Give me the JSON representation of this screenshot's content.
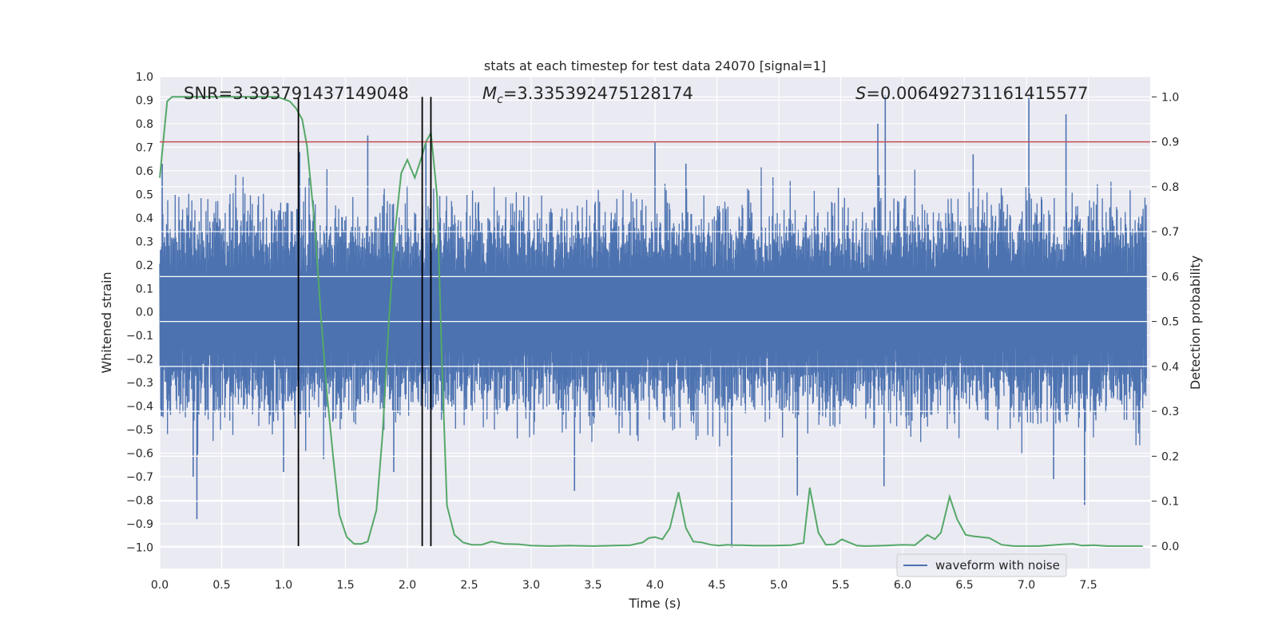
{
  "chart_data": {
    "type": "line",
    "title": "stats at each timestep for test data 24070 [signal=1]",
    "xlabel": "Time (s)",
    "ylabel": "Whitened strain",
    "y2label": "Detection probability",
    "xlim": [
      0.0,
      8.0
    ],
    "ylim": [
      -1.09,
      1.0
    ],
    "y2lim": [
      -0.05,
      1.045
    ],
    "x_ticks": [
      0.0,
      0.5,
      1.0,
      1.5,
      2.0,
      2.5,
      3.0,
      3.5,
      4.0,
      4.5,
      5.0,
      5.5,
      6.0,
      6.5,
      7.0,
      7.5
    ],
    "y_ticks": [
      1.0,
      0.9,
      0.8,
      0.7,
      0.6,
      0.5,
      0.4,
      0.3,
      0.2,
      0.1,
      0.0,
      -0.1,
      -0.2,
      -0.3,
      -0.4,
      -0.5,
      -0.6,
      -0.7,
      -0.8,
      -0.9,
      -1.0
    ],
    "y2_ticks": [
      1.0,
      0.9,
      0.8,
      0.7,
      0.6,
      0.5,
      0.4,
      0.3,
      0.2,
      0.1,
      0.0
    ],
    "grid": true,
    "legend_position": "lower-right",
    "annotations": {
      "snr": "SNR=3.393791437149048",
      "mc_symbol": "M",
      "mc_sub": "c",
      "mc_value": "=3.335392475128174",
      "s_symbol": "S",
      "s_value": "=0.006492731161415577"
    },
    "threshold_probability": 0.9,
    "vertical_markers_x": [
      1.12,
      2.12,
      2.19
    ],
    "series": [
      {
        "name": "waveform with noise",
        "axis": "left",
        "color": "#4c72b0",
        "envelope": {
          "typical_amplitude": 0.42,
          "notable_peaks": [
            {
              "x": 0.02,
              "y": 0.63
            },
            {
              "x": 0.3,
              "y": -0.88
            },
            {
              "x": 0.27,
              "y": -0.7
            },
            {
              "x": 1.0,
              "y": -0.68
            },
            {
              "x": 1.13,
              "y": 0.68
            },
            {
              "x": 1.68,
              "y": 0.75
            },
            {
              "x": 1.89,
              "y": -0.68
            },
            {
              "x": 2.15,
              "y": 0.72
            },
            {
              "x": 3.35,
              "y": -0.76
            },
            {
              "x": 4.0,
              "y": 0.72
            },
            {
              "x": 4.25,
              "y": 0.63
            },
            {
              "x": 4.62,
              "y": -1.0
            },
            {
              "x": 5.15,
              "y": -0.78
            },
            {
              "x": 5.8,
              "y": 0.8
            },
            {
              "x": 5.86,
              "y": 0.92
            },
            {
              "x": 5.85,
              "y": -0.74
            },
            {
              "x": 6.57,
              "y": 0.67
            },
            {
              "x": 7.02,
              "y": 0.91
            },
            {
              "x": 7.22,
              "y": -0.71
            },
            {
              "x": 7.32,
              "y": 0.84
            },
            {
              "x": 7.47,
              "y": -0.82
            }
          ]
        }
      },
      {
        "name": "detection probability",
        "axis": "right",
        "color": "#55a868",
        "x": [
          0.0,
          0.06,
          0.1,
          0.17,
          0.3,
          0.5,
          0.7,
          0.85,
          0.95,
          1.0,
          1.05,
          1.1,
          1.15,
          1.19,
          1.25,
          1.3,
          1.35,
          1.4,
          1.45,
          1.51,
          1.57,
          1.63,
          1.68,
          1.75,
          1.8,
          1.85,
          1.9,
          1.95,
          2.0,
          2.06,
          2.12,
          2.15,
          2.19,
          2.24,
          2.28,
          2.32,
          2.38,
          2.45,
          2.52,
          2.6,
          2.68,
          2.78,
          2.9,
          3.0,
          3.15,
          3.3,
          3.5,
          3.65,
          3.8,
          3.9,
          3.95,
          4.0,
          4.06,
          4.12,
          4.19,
          4.25,
          4.31,
          4.38,
          4.45,
          4.52,
          4.58,
          4.64,
          4.7,
          4.8,
          4.95,
          5.1,
          5.2,
          5.25,
          5.32,
          5.38,
          5.45,
          5.51,
          5.57,
          5.63,
          5.7,
          5.85,
          6.0,
          6.1,
          6.2,
          6.26,
          6.31,
          6.38,
          6.44,
          6.51,
          6.57,
          6.7,
          6.8,
          6.9,
          7.0,
          7.1,
          7.2,
          7.3,
          7.38,
          7.45,
          7.55,
          7.65,
          7.8,
          7.94
        ],
        "values": [
          0.82,
          0.99,
          1.0,
          1.0,
          1.0,
          1.0,
          1.0,
          1.0,
          1.0,
          0.995,
          0.99,
          0.975,
          0.95,
          0.89,
          0.72,
          0.52,
          0.34,
          0.2,
          0.07,
          0.02,
          0.005,
          0.005,
          0.01,
          0.08,
          0.25,
          0.5,
          0.7,
          0.83,
          0.86,
          0.82,
          0.87,
          0.9,
          0.92,
          0.78,
          0.4,
          0.09,
          0.025,
          0.008,
          0.003,
          0.003,
          0.01,
          0.005,
          0.004,
          0.001,
          0.0,
          0.001,
          0.0,
          0.001,
          0.002,
          0.008,
          0.018,
          0.02,
          0.015,
          0.04,
          0.12,
          0.04,
          0.01,
          0.008,
          0.003,
          0.001,
          0.003,
          0.002,
          0.002,
          0.001,
          0.001,
          0.002,
          0.007,
          0.13,
          0.03,
          0.003,
          0.004,
          0.015,
          0.008,
          0.001,
          0.0,
          0.001,
          0.003,
          0.002,
          0.025,
          0.015,
          0.03,
          0.11,
          0.06,
          0.025,
          0.022,
          0.018,
          0.003,
          0.0,
          0.0,
          0.0,
          0.002,
          0.004,
          0.005,
          0.001,
          0.002,
          0.0,
          0.0,
          0.0
        ]
      }
    ]
  }
}
